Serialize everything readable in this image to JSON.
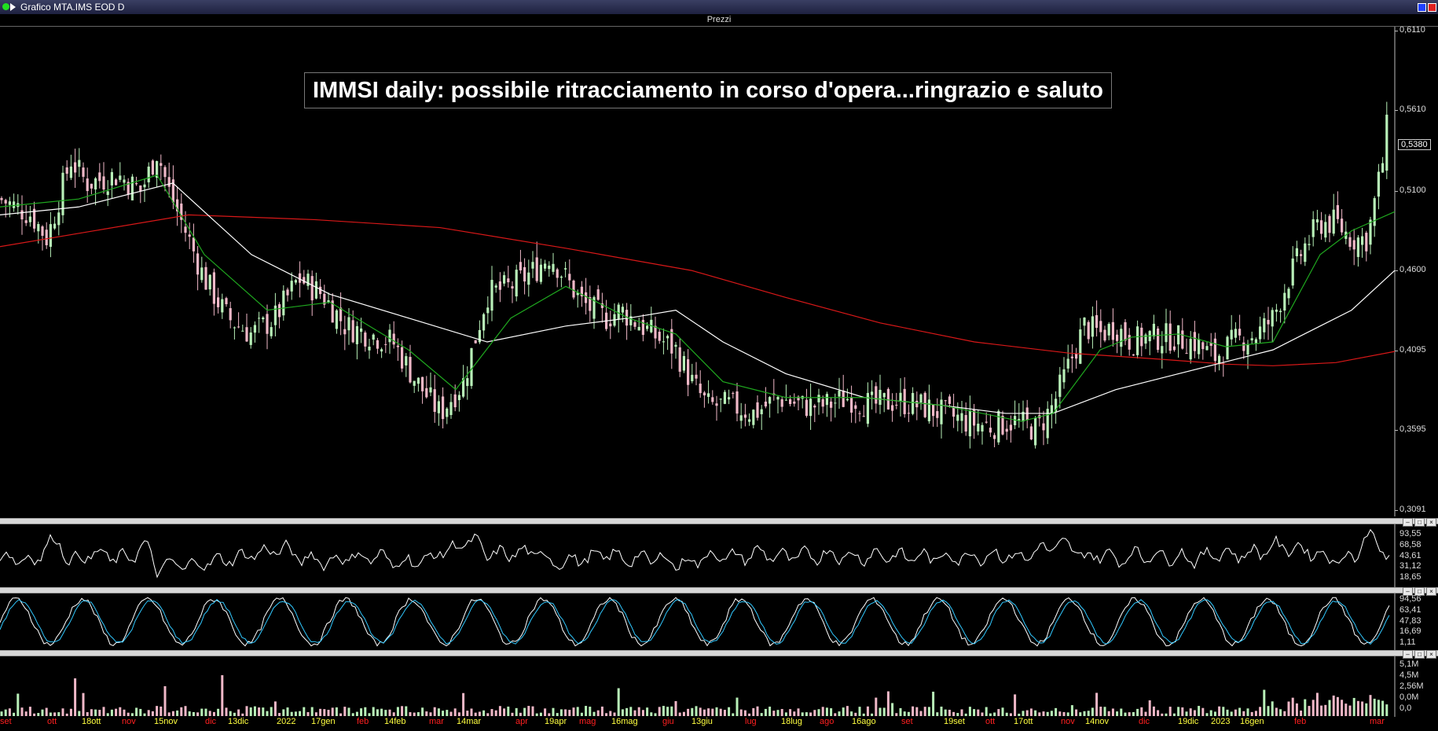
{
  "window": {
    "title": "Grafico MTA.IMS EOD D"
  },
  "panes": {
    "price_title": "Prezzi"
  },
  "headline": "IMMSI daily: possibile ritracciamento in corso d'opera...ringrazio e saluto",
  "colors": {
    "bull": "#b8f0b8",
    "bear": "#f0b8c8",
    "ma_fast": "#1fa81f",
    "ma_mid": "#ffffff",
    "ma_slow": "#d81818",
    "stoch_k": "#ffffff",
    "stoch_d": "#30c8ff",
    "month_red": "#ff2020",
    "date_yellow": "#ffff40"
  },
  "chart_data": [
    {
      "type": "candlestick",
      "title": "Prezzi",
      "y_ticks": [
        "0,6110",
        "0,5610",
        "0,5100",
        "0,4600",
        "0,4095",
        "0,3595",
        "0,3091"
      ],
      "ylim": [
        0.3091,
        0.611
      ],
      "last_price": "0,5380",
      "series": [
        {
          "name": "close",
          "points": [
            [
              0,
              0.505
            ],
            [
              40,
              0.495
            ],
            [
              60,
              0.48
            ],
            [
              90,
              0.53
            ],
            [
              110,
              0.515
            ],
            [
              150,
              0.52
            ],
            [
              180,
              0.51
            ],
            [
              200,
              0.535
            ],
            [
              215,
              0.51
            ],
            [
              240,
              0.48
            ],
            [
              260,
              0.455
            ],
            [
              290,
              0.43
            ],
            [
              320,
              0.42
            ],
            [
              350,
              0.43
            ],
            [
              380,
              0.455
            ],
            [
              410,
              0.445
            ],
            [
              440,
              0.425
            ],
            [
              470,
              0.42
            ],
            [
              500,
              0.415
            ],
            [
              530,
              0.39
            ],
            [
              560,
              0.37
            ],
            [
              590,
              0.39
            ],
            [
              620,
              0.445
            ],
            [
              650,
              0.45
            ],
            [
              680,
              0.46
            ],
            [
              700,
              0.47
            ],
            [
              720,
              0.455
            ],
            [
              740,
              0.44
            ],
            [
              770,
              0.43
            ],
            [
              790,
              0.435
            ],
            [
              830,
              0.42
            ],
            [
              860,
              0.41
            ],
            [
              880,
              0.39
            ],
            [
              900,
              0.375
            ],
            [
              930,
              0.375
            ],
            [
              960,
              0.37
            ],
            [
              990,
              0.38
            ],
            [
              1020,
              0.375
            ],
            [
              1050,
              0.375
            ],
            [
              1080,
              0.38
            ],
            [
              1110,
              0.375
            ],
            [
              1140,
              0.378
            ],
            [
              1170,
              0.375
            ],
            [
              1200,
              0.37
            ],
            [
              1230,
              0.365
            ],
            [
              1260,
              0.362
            ],
            [
              1290,
              0.365
            ],
            [
              1320,
              0.36
            ],
            [
              1340,
              0.375
            ],
            [
              1360,
              0.4
            ],
            [
              1380,
              0.425
            ],
            [
              1400,
              0.42
            ],
            [
              1420,
              0.425
            ],
            [
              1440,
              0.415
            ],
            [
              1460,
              0.418
            ],
            [
              1490,
              0.418
            ],
            [
              1520,
              0.415
            ],
            [
              1545,
              0.405
            ],
            [
              1570,
              0.415
            ],
            [
              1600,
              0.42
            ],
            [
              1620,
              0.43
            ],
            [
              1640,
              0.455
            ],
            [
              1660,
              0.475
            ],
            [
              1680,
              0.49
            ],
            [
              1700,
              0.49
            ],
            [
              1720,
              0.48
            ],
            [
              1740,
              0.48
            ],
            [
              1760,
              0.53
            ],
            [
              1765,
              0.55
            ],
            [
              1775,
              0.538
            ]
          ]
        },
        {
          "name": "ma_fast",
          "points": [
            [
              0,
              0.5
            ],
            [
              100,
              0.505
            ],
            [
              200,
              0.52
            ],
            [
              260,
              0.47
            ],
            [
              340,
              0.435
            ],
            [
              420,
              0.44
            ],
            [
              520,
              0.41
            ],
            [
              580,
              0.385
            ],
            [
              650,
              0.43
            ],
            [
              720,
              0.45
            ],
            [
              800,
              0.43
            ],
            [
              860,
              0.42
            ],
            [
              920,
              0.39
            ],
            [
              1000,
              0.38
            ],
            [
              1100,
              0.38
            ],
            [
              1200,
              0.375
            ],
            [
              1300,
              0.365
            ],
            [
              1340,
              0.37
            ],
            [
              1400,
              0.41
            ],
            [
              1440,
              0.418
            ],
            [
              1500,
              0.42
            ],
            [
              1560,
              0.412
            ],
            [
              1620,
              0.415
            ],
            [
              1680,
              0.47
            ],
            [
              1720,
              0.485
            ],
            [
              1775,
              0.497
            ]
          ]
        },
        {
          "name": "ma_mid",
          "points": [
            [
              0,
              0.495
            ],
            [
              100,
              0.5
            ],
            [
              220,
              0.515
            ],
            [
              320,
              0.47
            ],
            [
              420,
              0.445
            ],
            [
              520,
              0.43
            ],
            [
              620,
              0.415
            ],
            [
              720,
              0.425
            ],
            [
              800,
              0.43
            ],
            [
              860,
              0.435
            ],
            [
              920,
              0.415
            ],
            [
              1000,
              0.395
            ],
            [
              1100,
              0.38
            ],
            [
              1200,
              0.375
            ],
            [
              1280,
              0.37
            ],
            [
              1340,
              0.37
            ],
            [
              1420,
              0.385
            ],
            [
              1500,
              0.395
            ],
            [
              1580,
              0.405
            ],
            [
              1620,
              0.41
            ],
            [
              1680,
              0.425
            ],
            [
              1720,
              0.435
            ],
            [
              1775,
              0.46
            ]
          ]
        },
        {
          "name": "ma_slow",
          "points": [
            [
              0,
              0.475
            ],
            [
              120,
              0.485
            ],
            [
              240,
              0.495
            ],
            [
              400,
              0.492
            ],
            [
              560,
              0.487
            ],
            [
              720,
              0.474
            ],
            [
              880,
              0.46
            ],
            [
              1000,
              0.443
            ],
            [
              1120,
              0.427
            ],
            [
              1240,
              0.415
            ],
            [
              1360,
              0.408
            ],
            [
              1480,
              0.404
            ],
            [
              1560,
              0.401
            ],
            [
              1620,
              0.4
            ],
            [
              1700,
              0.402
            ],
            [
              1775,
              0.409
            ]
          ]
        }
      ]
    },
    {
      "type": "line",
      "y_ticks": [
        "93,55",
        "68,58",
        "43,61",
        "31,12",
        "18,65"
      ],
      "ylim": [
        10,
        100
      ]
    },
    {
      "type": "line",
      "y_ticks": [
        "94,56",
        "63,41",
        "47,83",
        "16,69",
        "1,11"
      ],
      "ylim": [
        0,
        100
      ]
    },
    {
      "type": "bar",
      "y_ticks": [
        "5,1M",
        "4,5M",
        "2,56M",
        "0,0M",
        "0,0"
      ],
      "ylim": [
        0,
        5.1
      ]
    }
  ],
  "x_axis": [
    {
      "label": "set",
      "color": "red"
    },
    {
      "label": "ott",
      "color": "red"
    },
    {
      "label": "18ott",
      "color": "yellow"
    },
    {
      "label": "nov",
      "color": "red"
    },
    {
      "label": "15nov",
      "color": "yellow"
    },
    {
      "label": "dic",
      "color": "red"
    },
    {
      "label": "13dic",
      "color": "yellow"
    },
    {
      "label": "2022",
      "color": "yellow"
    },
    {
      "label": "17gen",
      "color": "yellow"
    },
    {
      "label": "feb",
      "color": "red"
    },
    {
      "label": "14feb",
      "color": "yellow"
    },
    {
      "label": "mar",
      "color": "red"
    },
    {
      "label": "14mar",
      "color": "yellow"
    },
    {
      "label": "apr",
      "color": "red"
    },
    {
      "label": "19apr",
      "color": "yellow"
    },
    {
      "label": "mag",
      "color": "red"
    },
    {
      "label": "16mag",
      "color": "yellow"
    },
    {
      "label": "giu",
      "color": "red"
    },
    {
      "label": "13giu",
      "color": "yellow"
    },
    {
      "label": "lug",
      "color": "red"
    },
    {
      "label": "18lug",
      "color": "yellow"
    },
    {
      "label": "ago",
      "color": "red"
    },
    {
      "label": "16ago",
      "color": "yellow"
    },
    {
      "label": "set",
      "color": "red"
    },
    {
      "label": "19set",
      "color": "yellow"
    },
    {
      "label": "ott",
      "color": "red"
    },
    {
      "label": "17ott",
      "color": "yellow"
    },
    {
      "label": "nov",
      "color": "red"
    },
    {
      "label": "14nov",
      "color": "yellow"
    },
    {
      "label": "dic",
      "color": "red"
    },
    {
      "label": "19dic",
      "color": "yellow"
    },
    {
      "label": "2023",
      "color": "yellow"
    },
    {
      "label": "16gen",
      "color": "yellow"
    },
    {
      "label": "feb",
      "color": "red"
    },
    {
      "label": "mar",
      "color": "red"
    }
  ]
}
